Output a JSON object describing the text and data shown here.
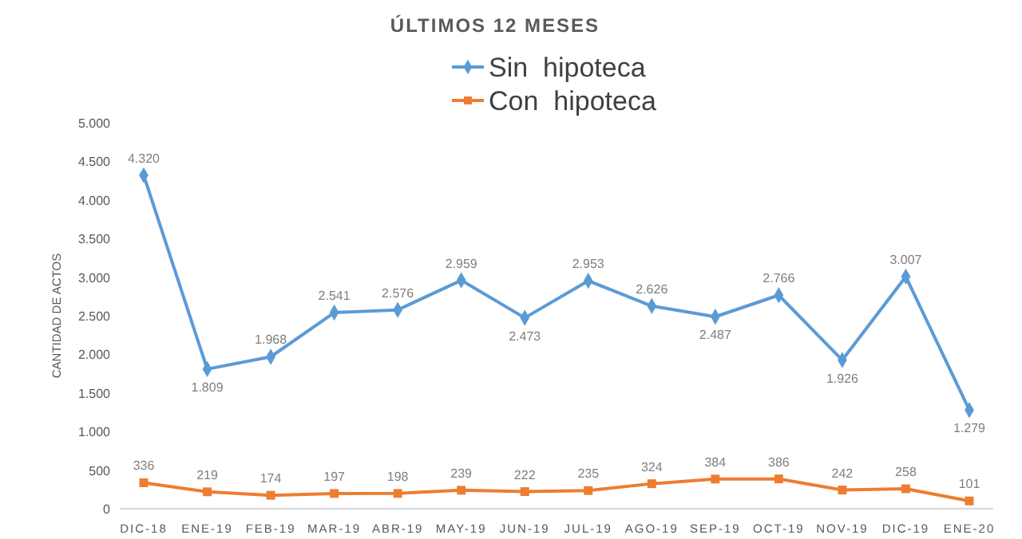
{
  "chart_data": {
    "type": "line",
    "title": "ÚLTIMOS 12 MESES",
    "ylabel": "CANTIDAD DE ACTOS",
    "categories": [
      "DIC-18",
      "ENE-19",
      "FEB-19",
      "MAR-19",
      "ABR-19",
      "MAY-19",
      "JUN-19",
      "JUL-19",
      "AGO-19",
      "SEP-19",
      "OCT-19",
      "NOV-19",
      "DIC-19",
      "ENE-20"
    ],
    "series": [
      {
        "name": "Sin  hipoteca",
        "color": "#5b9bd5",
        "marker": "diamond",
        "values": [
          4320,
          1809,
          1968,
          2541,
          2576,
          2959,
          2473,
          2953,
          2626,
          2487,
          2766,
          1926,
          3007,
          1279
        ],
        "value_labels": [
          "4.320",
          "1.809",
          "1.968",
          "2.541",
          "2.576",
          "2.959",
          "2.473",
          "2.953",
          "2.626",
          "2.487",
          "2.766",
          "1.926",
          "3.007",
          "1.279"
        ]
      },
      {
        "name": "Con  hipoteca",
        "color": "#ed7d31",
        "marker": "square",
        "values": [
          336,
          219,
          174,
          197,
          198,
          239,
          222,
          235,
          324,
          384,
          386,
          242,
          258,
          101
        ],
        "value_labels": [
          "336",
          "219",
          "174",
          "197",
          "198",
          "239",
          "222",
          "235",
          "324",
          "384",
          "386",
          "242",
          "258",
          "101"
        ]
      }
    ],
    "ylim": [
      0,
      5000
    ],
    "yticks": [
      {
        "value": 0,
        "label": "0"
      },
      {
        "value": 500,
        "label": "500"
      },
      {
        "value": 1000,
        "label": "1.000"
      },
      {
        "value": 1500,
        "label": "1.500"
      },
      {
        "value": 2000,
        "label": "2.000"
      },
      {
        "value": 2500,
        "label": "2.500"
      },
      {
        "value": 3000,
        "label": "3.000"
      },
      {
        "value": 3500,
        "label": "3.500"
      },
      {
        "value": 4000,
        "label": "4.000"
      },
      {
        "value": 4500,
        "label": "4.500"
      },
      {
        "value": 5000,
        "label": "5.000"
      }
    ],
    "grid": false,
    "legend": "top",
    "line_style": "solid"
  }
}
